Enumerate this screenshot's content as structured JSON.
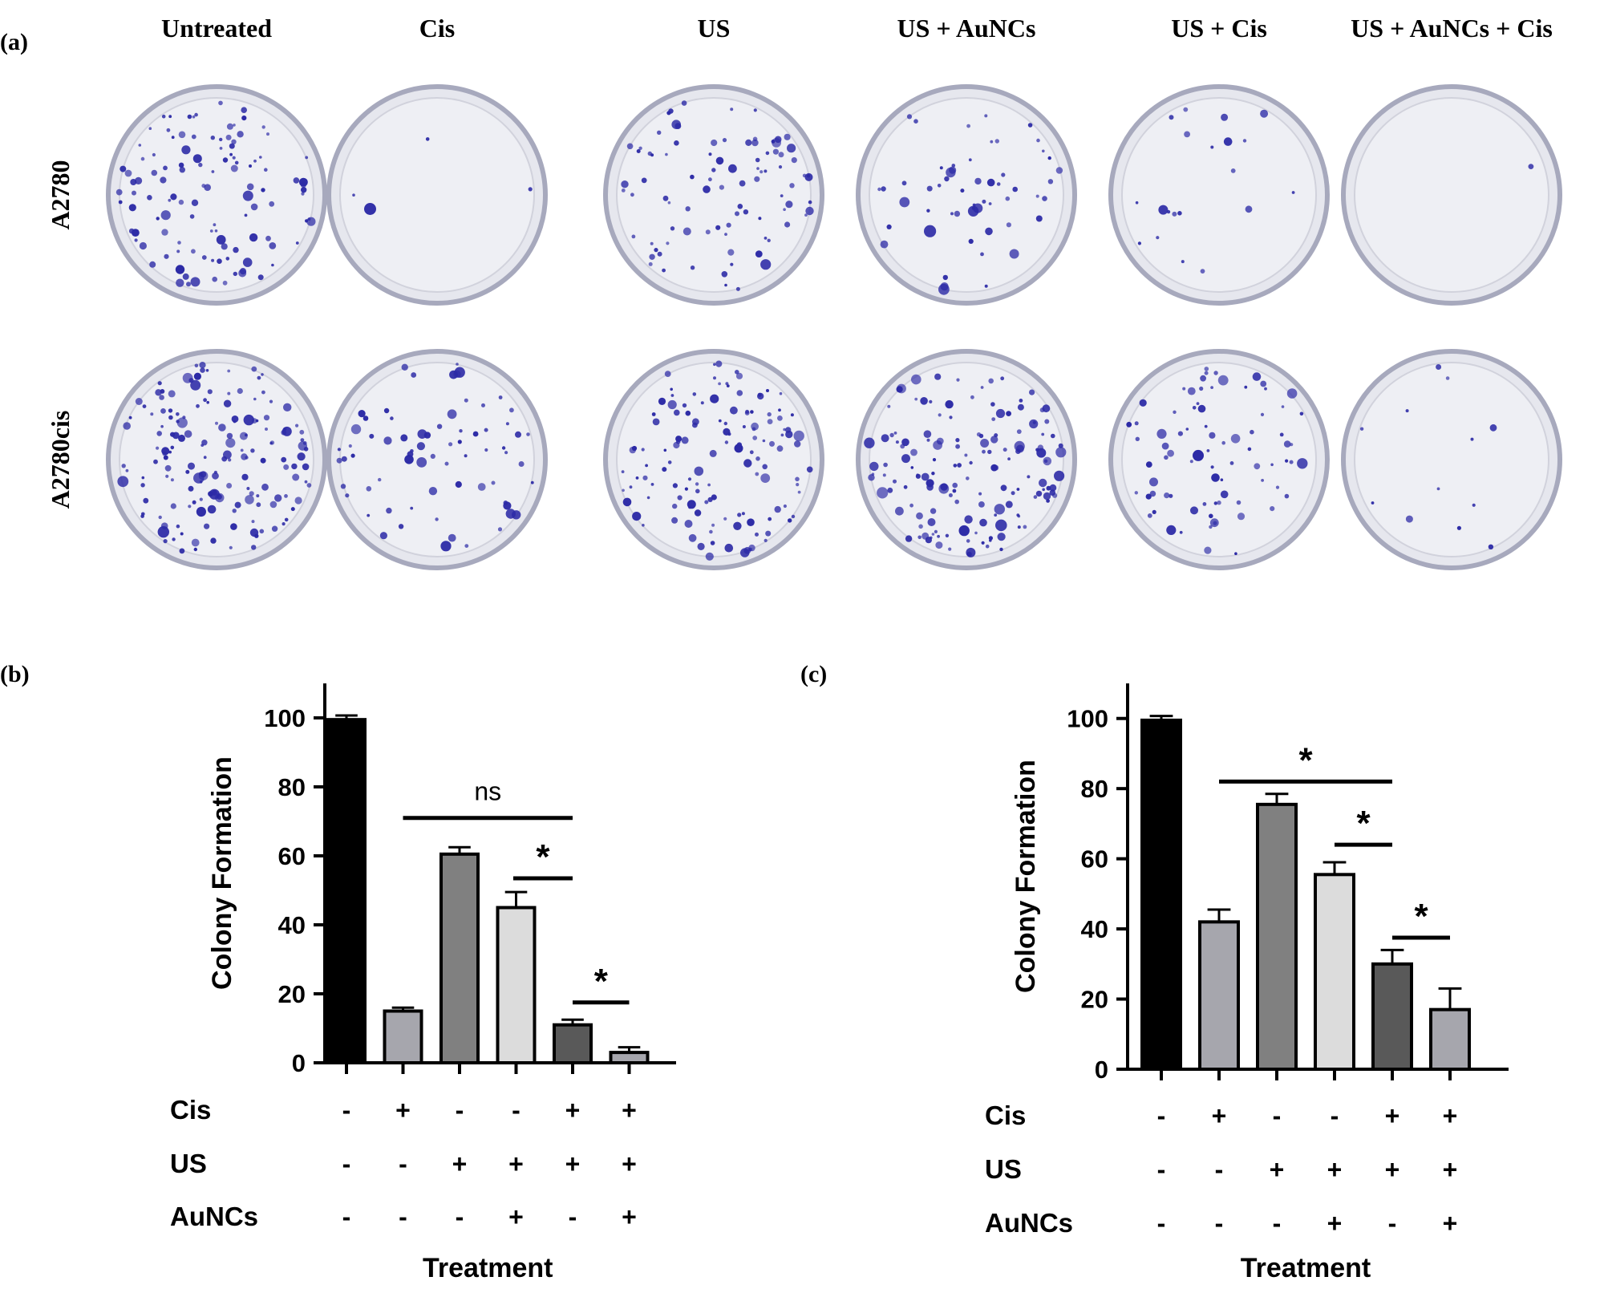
{
  "panel_a": {
    "label": "(a)",
    "column_headers": [
      "Untreated",
      "Cis",
      "US",
      "US + AuNCs",
      "US + Cis",
      "US + AuNCs + Cis"
    ],
    "row_labels": [
      "A2780",
      "A2780cis"
    ],
    "colors": {
      "dish_rim": "#a7a9bd",
      "dish_fill": "#e6e7ee",
      "dish_inner": "#eeeff4",
      "colony": "#2c2aa6"
    },
    "colony_density": [
      [
        115,
        4,
        90,
        55,
        20,
        1
      ],
      [
        165,
        70,
        130,
        150,
        80,
        12
      ]
    ]
  },
  "chart_data": [
    {
      "type": "bar",
      "panel_label": "(b)",
      "categories": [
        "Cis - / US - / AuNCs -",
        "Cis + / US - / AuNCs -",
        "Cis - / US + / AuNCs -",
        "Cis - / US + / AuNCs +",
        "Cis + / US + / AuNCs -",
        "Cis + / US + / AuNCs +"
      ],
      "values": [
        99.5,
        15,
        60.5,
        45,
        11,
        3
      ],
      "errors": [
        1.2,
        1.0,
        2.0,
        4.5,
        1.5,
        1.5
      ],
      "bar_colors": [
        "#000000",
        "#a6a6ad",
        "#808080",
        "#dcdcdc",
        "#595959",
        "#a6a6ad"
      ],
      "ylabel": "Colony Formation",
      "xlabel": "Treatment",
      "ylim": [
        0,
        110
      ],
      "yticks": [
        0,
        20,
        40,
        60,
        80,
        100
      ],
      "treatment_rows": [
        {
          "name": "Cis",
          "signs": [
            "-",
            "+",
            "-",
            "-",
            "+",
            "+"
          ]
        },
        {
          "name": "US",
          "signs": [
            "-",
            "-",
            "+",
            "+",
            "+",
            "+"
          ]
        },
        {
          "name": "AuNCs",
          "signs": [
            "-",
            "-",
            "-",
            "+",
            "-",
            "+"
          ]
        }
      ],
      "annotations": [
        {
          "from": 1,
          "to": 4,
          "y": 71,
          "text": "ns"
        },
        {
          "from": 4,
          "to": 4,
          "y": 53.5,
          "text": "*"
        },
        {
          "from": 4,
          "to": 5,
          "y": 17.5,
          "text": "*"
        }
      ]
    },
    {
      "type": "bar",
      "panel_label": "(c)",
      "categories": [
        "Cis - / US - / AuNCs -",
        "Cis + / US - / AuNCs -",
        "Cis - / US + / AuNCs -",
        "Cis - / US + / AuNCs +",
        "Cis + / US + / AuNCs -",
        "Cis + / US + / AuNCs +"
      ],
      "values": [
        99.5,
        42,
        75.5,
        55.5,
        30,
        17
      ],
      "errors": [
        1.2,
        3.5,
        3.0,
        3.5,
        4.0,
        6.0
      ],
      "bar_colors": [
        "#000000",
        "#a6a6ad",
        "#808080",
        "#dcdcdc",
        "#595959",
        "#a6a6ad"
      ],
      "ylabel": "Colony Formation",
      "xlabel": "Treatment",
      "ylim": [
        0,
        110
      ],
      "yticks": [
        0,
        20,
        40,
        60,
        80,
        100
      ],
      "treatment_rows": [
        {
          "name": "Cis",
          "signs": [
            "-",
            "+",
            "-",
            "-",
            "+",
            "+"
          ]
        },
        {
          "name": "US",
          "signs": [
            "-",
            "-",
            "+",
            "+",
            "+",
            "+"
          ]
        },
        {
          "name": "AuNCs",
          "signs": [
            "-",
            "-",
            "-",
            "+",
            "-",
            "+"
          ]
        }
      ],
      "annotations": [
        {
          "from": 1,
          "to": 4,
          "y": 82,
          "text": "*"
        },
        {
          "from": 3,
          "to": 4,
          "y": 64,
          "text": "*"
        },
        {
          "from": 4,
          "to": 5,
          "y": 37.5,
          "text": "*"
        }
      ]
    }
  ]
}
